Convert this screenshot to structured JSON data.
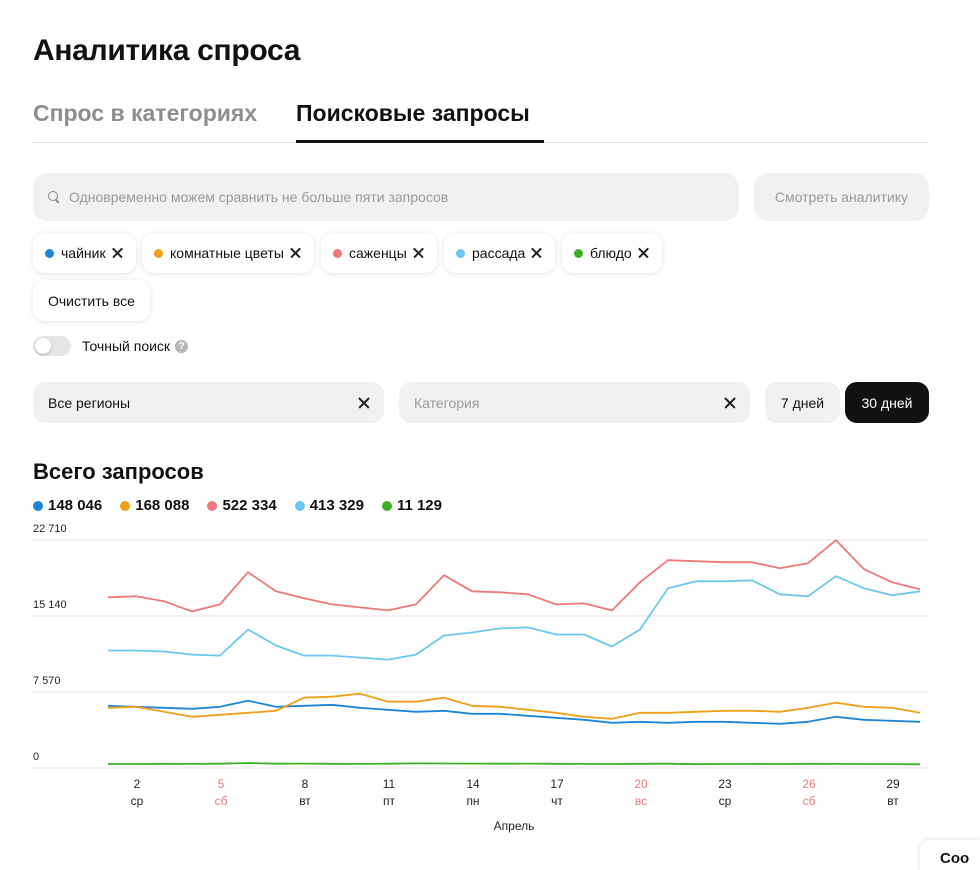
{
  "page": {
    "title": "Аналитика спроса"
  },
  "tabs": [
    {
      "label": "Спрос в категориях",
      "active": false
    },
    {
      "label": "Поисковые запросы",
      "active": true
    }
  ],
  "search": {
    "placeholder": "Одновременно можем сравнить не больше пяти запросов",
    "value": "",
    "button_label": "Смотреть аналитику",
    "icon": "search-icon"
  },
  "chips": [
    {
      "label": "чайник",
      "color": "#1e86d6"
    },
    {
      "label": "комнатные цветы",
      "color": "#f0a019"
    },
    {
      "label": "саженцы",
      "color": "#f0787a"
    },
    {
      "label": "рассада",
      "color": "#6cc7ef"
    },
    {
      "label": "блюдо",
      "color": "#3db028"
    }
  ],
  "clear_all_label": "Очистить все",
  "exact_search": {
    "label": "Точный поиск",
    "enabled": false,
    "help": "?"
  },
  "filters": {
    "region": "Все регионы",
    "category_placeholder": "Категория"
  },
  "period": {
    "options": [
      "7 дней",
      "30 дней"
    ],
    "selected": "30 дней"
  },
  "totals_title": "Всего запросов",
  "totals": [
    {
      "value": "148 046",
      "color": "#1e86d6"
    },
    {
      "value": "168 088",
      "color": "#f0a019"
    },
    {
      "value": "522 334",
      "color": "#f0787a"
    },
    {
      "value": "413 329",
      "color": "#6cc7ef"
    },
    {
      "value": "11 129",
      "color": "#3db028"
    }
  ],
  "chart_data": {
    "type": "line",
    "x": [
      "1",
      "2",
      "3",
      "4",
      "5",
      "6",
      "7",
      "8",
      "9",
      "10",
      "11",
      "12",
      "13",
      "14",
      "15",
      "16",
      "17",
      "18",
      "19",
      "20",
      "21",
      "22",
      "23",
      "24",
      "25",
      "26",
      "27",
      "28",
      "29",
      "30"
    ],
    "xticks": [
      {
        "x": "2",
        "day": "2",
        "weekday": "ср",
        "weekend": false
      },
      {
        "x": "5",
        "day": "5",
        "weekday": "сб",
        "weekend": true
      },
      {
        "x": "8",
        "day": "8",
        "weekday": "вт",
        "weekend": false
      },
      {
        "x": "11",
        "day": "11",
        "weekday": "пт",
        "weekend": false
      },
      {
        "x": "14",
        "day": "14",
        "weekday": "пн",
        "weekend": false
      },
      {
        "x": "17",
        "day": "17",
        "weekday": "чт",
        "weekend": false
      },
      {
        "x": "20",
        "day": "20",
        "weekday": "вс",
        "weekend": true
      },
      {
        "x": "23",
        "day": "23",
        "weekday": "ср",
        "weekend": false
      },
      {
        "x": "26",
        "day": "26",
        "weekday": "сб",
        "weekend": true
      },
      {
        "x": "29",
        "day": "29",
        "weekday": "вт",
        "weekend": false
      }
    ],
    "yticks": [
      {
        "value": 0,
        "label": "0"
      },
      {
        "value": 7570,
        "label": "7 570"
      },
      {
        "value": 15140,
        "label": "15 140"
      },
      {
        "value": 22710,
        "label": "22 710"
      }
    ],
    "ylim": [
      0,
      22710
    ],
    "xlabel": "Апрель",
    "ylabel": "",
    "grid": true,
    "weekend_color": "#e8777a",
    "series": [
      {
        "name": "чайник",
        "color": "#1e86d6",
        "values": [
          6200,
          6100,
          6000,
          5900,
          6100,
          6700,
          6100,
          6200,
          6300,
          6000,
          5800,
          5600,
          5700,
          5400,
          5400,
          5200,
          5000,
          4800,
          4500,
          4600,
          4500,
          4600,
          4600,
          4500,
          4400,
          4600,
          5100,
          4800,
          4700,
          4600
        ]
      },
      {
        "name": "комнатные цветы",
        "color": "#f0a019",
        "values": [
          6000,
          6100,
          5600,
          5100,
          5300,
          5500,
          5700,
          7000,
          7100,
          7400,
          6600,
          6600,
          7000,
          6200,
          6100,
          5800,
          5500,
          5100,
          4900,
          5500,
          5500,
          5600,
          5700,
          5700,
          5600,
          6000,
          6500,
          6100,
          6000,
          5500
        ]
      },
      {
        "name": "саженцы",
        "color": "#f0787a",
        "values": [
          17000,
          17100,
          16600,
          15600,
          16300,
          19500,
          17600,
          16900,
          16300,
          16000,
          15700,
          16300,
          19200,
          17600,
          17500,
          17300,
          16300,
          16400,
          15700,
          18500,
          20700,
          20600,
          20500,
          20500,
          19900,
          20400,
          22700,
          19800,
          18500,
          17800
        ]
      },
      {
        "name": "рассада",
        "color": "#6cc7ef",
        "values": [
          11700,
          11700,
          11600,
          11300,
          11200,
          13800,
          12200,
          11200,
          11200,
          11000,
          10800,
          11300,
          13200,
          13500,
          13900,
          14000,
          13300,
          13300,
          12100,
          13800,
          17900,
          18600,
          18600,
          18700,
          17300,
          17100,
          19100,
          17900,
          17200,
          17600
        ]
      },
      {
        "name": "блюдо",
        "color": "#3db028",
        "values": [
          400,
          400,
          420,
          410,
          430,
          500,
          430,
          440,
          420,
          410,
          430,
          460,
          450,
          440,
          430,
          440,
          420,
          410,
          400,
          420,
          430,
          380,
          400,
          410,
          400,
          420,
          410,
          400,
          390,
          370
        ]
      }
    ]
  },
  "corner_button": {
    "label": "Coo"
  }
}
